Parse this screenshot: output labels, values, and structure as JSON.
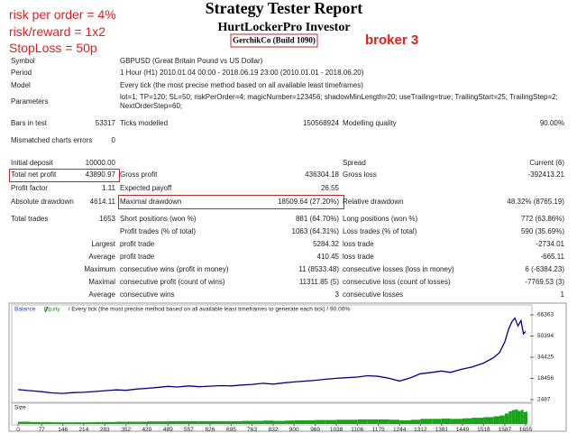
{
  "annotations": [
    "risk per order = 4%",
    "risk/reward = 1x2",
    "StopLoss = 50p"
  ],
  "broker_note": "broker 3",
  "header": {
    "title": "Strategy Tester Report",
    "subtitle": "HurtLockerPro Investor",
    "build": "GerchikCo  (Build 1090)"
  },
  "report": {
    "info_rows": [
      [
        "Symbol",
        "GBPUSD (Great Britain Pound vs US Dollar)"
      ],
      [
        "Period",
        "1 Hour (H1) 2010.01.04 00:00 - 2018.06.19 23:00 (2010.01.01 - 2018.06.20)"
      ],
      [
        "Model",
        "Every tick (the most precise method based on all available least timeframes)"
      ],
      [
        "Parameters",
        "lot=1; TP=120; SL=50; riskPerOrder=4; magicNumber=123456; shadowMinLength=20; useTrailing=true; TrailingStart=25; TrailingStep=2; NextOrderStep=60;"
      ]
    ],
    "stat_rows": [
      [
        "Bars in test",
        "53317",
        "Ticks modelled",
        "150568924",
        "Modelling quality",
        "90.00%"
      ],
      [
        "Mismatched charts errors",
        "0",
        null,
        null,
        null,
        null
      ],
      [
        "Initial deposit",
        "10000.00",
        null,
        null,
        "Spread",
        "Current (6)"
      ],
      [
        "Total net profit",
        "43890.97",
        "Gross profit",
        "436304.18",
        "Gross loss",
        "-392413.21"
      ],
      [
        "Profit factor",
        "1.11",
        "Expected payoff",
        "26.55",
        null,
        null
      ],
      [
        "Absolute drawdown",
        "4614.11",
        "Maximal drawdown",
        "18509.64 (27.20%)",
        "Relative drawdown",
        "48.32% (8765.19)"
      ],
      [
        "Total trades",
        "1653",
        "Short positions (won %)",
        "881 (64.70%)",
        "Long positions (won %)",
        "772 (63.86%)"
      ],
      [
        null,
        null,
        "Profit trades (% of total)",
        "1063 (64.31%)",
        "Loss trades (% of total)",
        "590 (35.69%)"
      ]
    ],
    "trade_rows": [
      [
        "Largest",
        "profit trade",
        "5284.32",
        "loss trade",
        "-2734.01"
      ],
      [
        "Average",
        "profit trade",
        "410.45",
        "loss trade",
        "-665.11"
      ],
      [
        "Maximum",
        "consecutive wins (profit in money)",
        "11 (8533.48)",
        "consecutive losses (loss in money)",
        "6 (-6384.23)"
      ],
      [
        "Maximal",
        "consecutive profit (count of wins)",
        "11311.85 (5)",
        "consecutive loss (count of losses)",
        "-7769.53 (3)"
      ],
      [
        "Average",
        "consecutive wins",
        "3",
        "consecutive losses",
        "1"
      ]
    ]
  },
  "chart_data": {
    "type": "line",
    "legend": {
      "items": [
        {
          "name": "Balance",
          "color": "#1f3fbf"
        },
        {
          "name": "Equity",
          "color": "#1a9a1a"
        }
      ],
      "description": "/ Every tick (the most precise method based on all available least timeframes to generate each tick) / 90.00%"
    },
    "x": [
      0,
      40,
      77,
      110,
      146,
      180,
      214,
      250,
      283,
      320,
      352,
      390,
      420,
      460,
      489,
      520,
      557,
      590,
      626,
      660,
      695,
      730,
      763,
      800,
      832,
      870,
      900,
      940,
      969,
      1000,
      1038,
      1070,
      1106,
      1140,
      1175,
      1210,
      1244,
      1280,
      1312,
      1350,
      1381,
      1410,
      1449,
      1480,
      1518,
      1550,
      1570,
      1587,
      1600,
      1610,
      1620,
      1630,
      1640,
      1648,
      1655
    ],
    "series": [
      {
        "name": "Balance",
        "color": "#00008b",
        "values": [
          10000,
          9200,
          8500,
          7600,
          7200,
          7800,
          8000,
          8600,
          9200,
          9800,
          9500,
          10500,
          11000,
          11800,
          12500,
          12000,
          12800,
          12200,
          12600,
          13000,
          12800,
          13500,
          14000,
          14800,
          14200,
          15200,
          15800,
          16500,
          17000,
          17800,
          18500,
          19000,
          19500,
          20500,
          20000,
          18500,
          16500,
          19000,
          22000,
          23000,
          24000,
          23000,
          25500,
          27000,
          30000,
          34000,
          38000,
          46000,
          56000,
          61000,
          64000,
          58000,
          62000,
          52000,
          53891
        ]
      }
    ],
    "xlim": [
      0,
      1655
    ],
    "ylim": [
      2487,
      66363
    ],
    "yticks": [
      66363,
      50394,
      34425,
      18456,
      2487
    ],
    "xticks": [
      0,
      77,
      146,
      214,
      283,
      352,
      420,
      489,
      557,
      626,
      695,
      763,
      832,
      900,
      969,
      1038,
      1106,
      1175,
      1244,
      1312,
      1381,
      1449,
      1518,
      1587,
      1655
    ],
    "size": {
      "label": "Size",
      "color": "#1aa31a",
      "values": [
        0.8,
        0.7,
        0.7,
        0.6,
        0.6,
        0.6,
        0.6,
        0.7,
        0.7,
        0.8,
        0.8,
        0.8,
        0.9,
        0.9,
        1.0,
        1.0,
        1.0,
        1.0,
        1.0,
        1.0,
        1.0,
        1.1,
        1.1,
        1.2,
        1.1,
        1.2,
        1.3,
        1.3,
        1.4,
        1.4,
        1.5,
        1.5,
        1.6,
        1.6,
        1.6,
        1.5,
        1.3,
        1.5,
        1.8,
        1.8,
        1.9,
        1.8,
        2.0,
        2.2,
        2.4,
        2.7,
        3.0,
        3.7,
        4.5,
        4.9,
        5.1,
        4.6,
        5.0,
        4.2,
        4.3
      ]
    }
  }
}
